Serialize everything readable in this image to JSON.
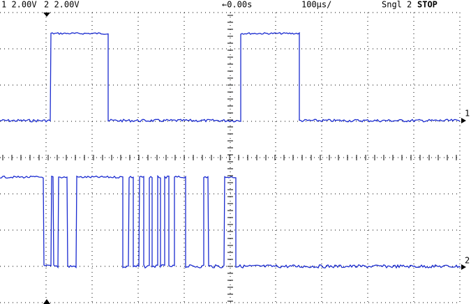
{
  "status": {
    "ch1": "1 2.00V",
    "ch2": "2 2.00V",
    "delay": "←0.00s",
    "timebase": "100µs/",
    "mode": "Sngl",
    "trigger": "2",
    "run": "STOP"
  },
  "markers": {
    "ch1": "1",
    "ch2": "2"
  }
}
